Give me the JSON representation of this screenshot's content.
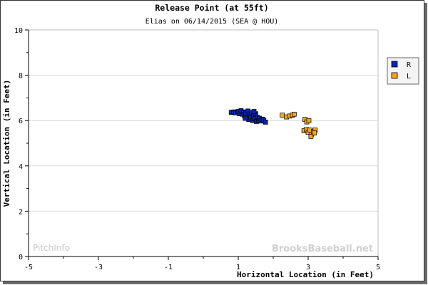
{
  "chart_data": {
    "type": "scatter",
    "title": "Release Point (at 55ft)",
    "subtitle": "Elias on 06/14/2015 (SEA @ HOU)",
    "xlabel": "Horizontal Location (in Feet)",
    "ylabel": "Vertical Location (in Feet)",
    "xlim": [
      -5,
      5
    ],
    "ylim": [
      0,
      10
    ],
    "x_ticks": [
      "-5",
      "-3",
      "-1",
      "1",
      "3",
      "5"
    ],
    "x_tick_values": [
      -5,
      -3,
      -1,
      1,
      3,
      5
    ],
    "y_ticks": [
      "0",
      "2",
      "4",
      "6",
      "8",
      "10"
    ],
    "y_tick_values": [
      0,
      2,
      4,
      6,
      8,
      10
    ],
    "grid": true,
    "legend_position": "right",
    "series": [
      {
        "name": "R",
        "color": "#0b24a8",
        "points": [
          [
            0.8,
            6.36
          ],
          [
            0.87,
            6.38
          ],
          [
            0.93,
            6.34
          ],
          [
            1.0,
            6.4
          ],
          [
            1.04,
            6.3
          ],
          [
            1.08,
            6.44
          ],
          [
            1.12,
            6.28
          ],
          [
            1.15,
            6.38
          ],
          [
            1.18,
            6.2
          ],
          [
            1.22,
            6.34
          ],
          [
            1.26,
            6.15
          ],
          [
            1.28,
            6.42
          ],
          [
            1.3,
            6.05
          ],
          [
            1.33,
            6.26
          ],
          [
            1.36,
            6.12
          ],
          [
            1.38,
            6.35
          ],
          [
            1.41,
            6.0
          ],
          [
            1.44,
            6.22
          ],
          [
            1.47,
            6.08
          ],
          [
            1.5,
            6.3
          ],
          [
            1.52,
            5.96
          ],
          [
            1.55,
            6.14
          ],
          [
            1.58,
            6.02
          ],
          [
            1.61,
            6.1
          ],
          [
            1.65,
            5.98
          ],
          [
            1.69,
            6.06
          ],
          [
            1.73,
            6.02
          ],
          [
            1.78,
            5.93
          ],
          [
            1.2,
            6.1
          ],
          [
            1.45,
            6.4
          ]
        ]
      },
      {
        "name": "L",
        "color": "#f0a623",
        "points": [
          [
            2.26,
            6.24
          ],
          [
            2.38,
            6.16
          ],
          [
            2.47,
            6.2
          ],
          [
            2.55,
            6.24
          ],
          [
            2.6,
            6.28
          ],
          [
            2.91,
            6.05
          ],
          [
            2.96,
            5.94
          ],
          [
            3.02,
            6.0
          ],
          [
            2.88,
            5.55
          ],
          [
            2.95,
            5.6
          ],
          [
            3.0,
            5.48
          ],
          [
            3.05,
            5.58
          ],
          [
            3.1,
            5.4
          ],
          [
            3.15,
            5.52
          ],
          [
            3.2,
            5.58
          ],
          [
            3.08,
            5.3
          ],
          [
            3.18,
            5.45
          ]
        ]
      }
    ],
    "watermark_left": "PitchInfo",
    "watermark_right": "BrooksBaseball.net"
  }
}
